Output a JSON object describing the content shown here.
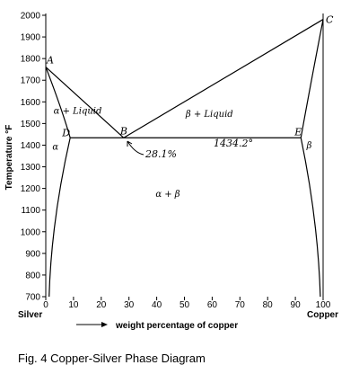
{
  "chart_data": {
    "type": "phase-diagram",
    "xlabel": "weight percentage of copper",
    "ylabel": "Temperature °F",
    "xlim": [
      0,
      100
    ],
    "ylim": [
      700,
      2000
    ],
    "x_ticks": [
      0,
      10,
      20,
      30,
      40,
      50,
      60,
      70,
      80,
      90,
      100
    ],
    "y_ticks": [
      700,
      800,
      900,
      1000,
      1100,
      1200,
      1300,
      1400,
      1500,
      1600,
      1700,
      1800,
      1900,
      2000
    ],
    "x_end_labels": {
      "left": "Silver",
      "right": "Copper"
    },
    "points": [
      {
        "label": "A",
        "x": 0,
        "y": 1761
      },
      {
        "label": "B",
        "x": 28.1,
        "y": 1434
      },
      {
        "label": "C",
        "x": 100,
        "y": 1981
      },
      {
        "label": "D",
        "x": 8.8,
        "y": 1434
      },
      {
        "label": "E",
        "x": 92,
        "y": 1434
      }
    ],
    "eutectic_composition": "28.1%",
    "eutectic_temperature": "1434.2°",
    "regions": [
      {
        "label": "α",
        "x": 3.5,
        "y": 1380
      },
      {
        "label": "α + Liquid",
        "x": 11.5,
        "y": 1545
      },
      {
        "label": "β + Liquid",
        "x": 59,
        "y": 1530
      },
      {
        "label": "α + β",
        "x": 44,
        "y": 1160
      },
      {
        "label": "β",
        "x": 95,
        "y": 1385
      }
    ],
    "caption": "Fig. 4 Copper-Silver Phase Diagram"
  }
}
